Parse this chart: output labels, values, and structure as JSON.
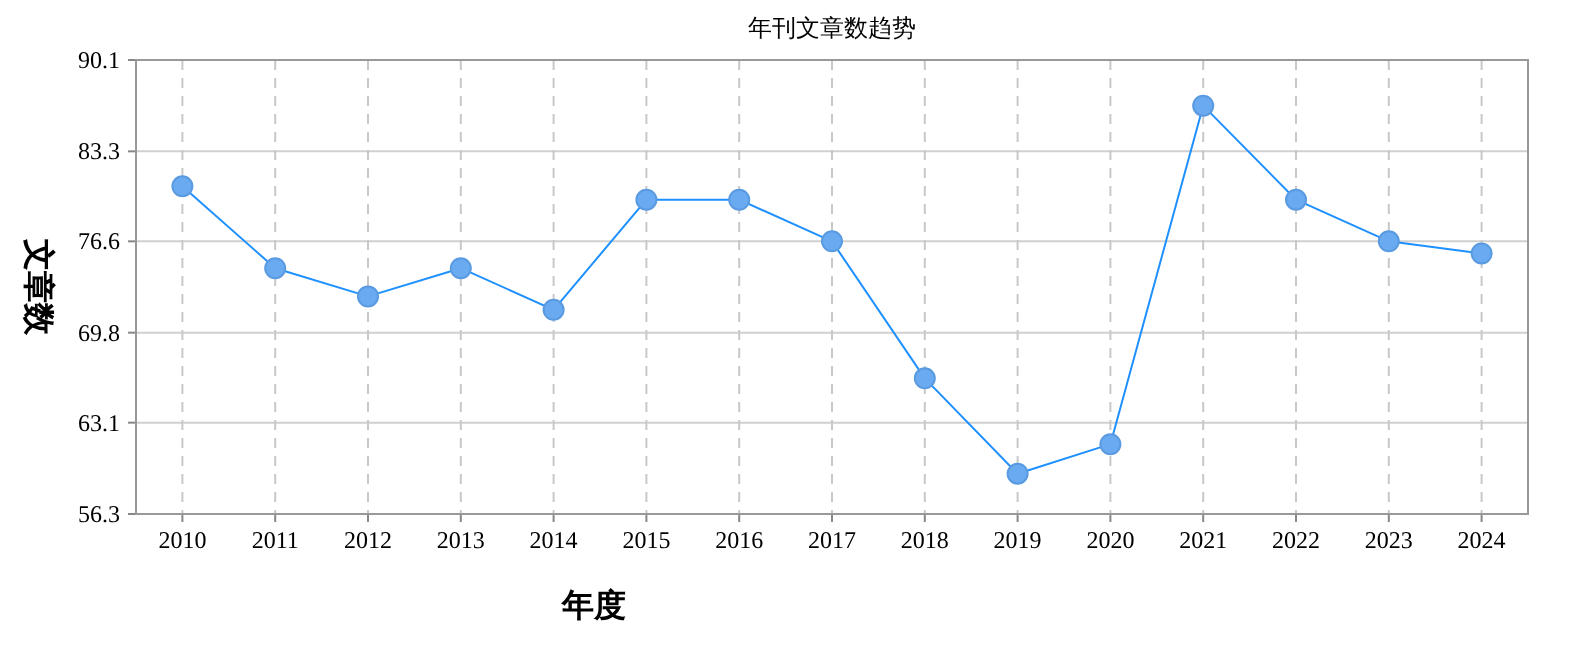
{
  "chart_data": {
    "type": "line",
    "title": "年刊文章数趋势",
    "xlabel": "年度",
    "ylabel": "文章数",
    "categories": [
      "2010",
      "2011",
      "2012",
      "2013",
      "2014",
      "2015",
      "2016",
      "2017",
      "2018",
      "2019",
      "2020",
      "2021",
      "2022",
      "2023",
      "2024"
    ],
    "series": [
      {
        "color": "#1e90ff",
        "values": [
          80.7,
          74.6,
          72.5,
          74.6,
          71.5,
          79.7,
          79.7,
          76.6,
          66.4,
          59.3,
          61.5,
          86.7,
          79.7,
          76.6,
          75.7
        ]
      }
    ],
    "ylim": [
      56.3,
      90.1
    ],
    "yticks": [
      56.3,
      63.1,
      69.8,
      76.6,
      83.3,
      90.1
    ],
    "grid": true,
    "marker": "circle",
    "line_style": "solid"
  }
}
